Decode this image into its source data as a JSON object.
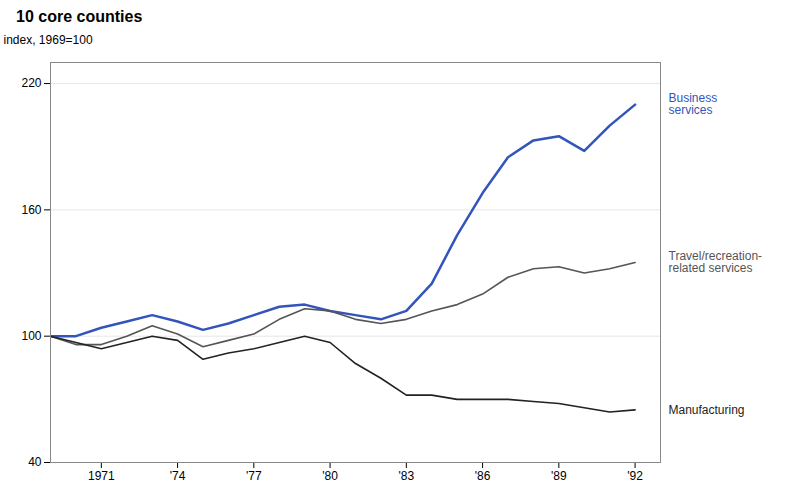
{
  "chart_data": {
    "type": "line",
    "title": "10 core counties",
    "ylabel": "index, 1969=100",
    "x": [
      1969,
      1970,
      1971,
      1972,
      1973,
      1974,
      1975,
      1976,
      1977,
      1978,
      1979,
      1980,
      1981,
      1982,
      1983,
      1984,
      1985,
      1986,
      1987,
      1988,
      1989,
      1990,
      1991,
      1992
    ],
    "series": [
      {
        "name": "Business\nservices",
        "color": "#3355bb",
        "values": [
          100,
          100,
          104,
          107,
          110,
          107,
          103,
          106,
          110,
          114,
          115,
          112,
          110,
          108,
          112,
          125,
          148,
          168,
          185,
          193,
          195,
          188,
          200,
          210
        ]
      },
      {
        "name": "Travel/recreation-\nrelated services",
        "color": "#555555",
        "values": [
          100,
          96,
          96,
          100,
          105,
          101,
          95,
          98,
          101,
          108,
          113,
          112,
          108,
          106,
          108,
          112,
          115,
          120,
          128,
          132,
          133,
          130,
          132,
          135
        ]
      },
      {
        "name": "Manufacturing",
        "color": "#222222",
        "values": [
          100,
          97,
          94,
          97,
          100,
          98,
          89,
          92,
          94,
          97,
          100,
          97,
          87,
          80,
          72,
          72,
          70,
          70,
          70,
          69,
          68,
          66,
          64,
          65
        ]
      }
    ],
    "xlim": [
      1969,
      1993
    ],
    "xticks": [
      1971,
      {
        "value": 1974,
        "label": "'74"
      },
      {
        "value": 1977,
        "label": "'77"
      },
      {
        "value": 1980,
        "label": "'80"
      },
      {
        "value": 1983,
        "label": "'83"
      },
      {
        "value": 1986,
        "label": "'86"
      },
      {
        "value": 1989,
        "label": "'89"
      },
      {
        "value": 1992,
        "label": "'92"
      }
    ],
    "ylim": [
      40,
      230
    ],
    "yticks": [
      40,
      100,
      160,
      220
    ],
    "grid": true
  }
}
